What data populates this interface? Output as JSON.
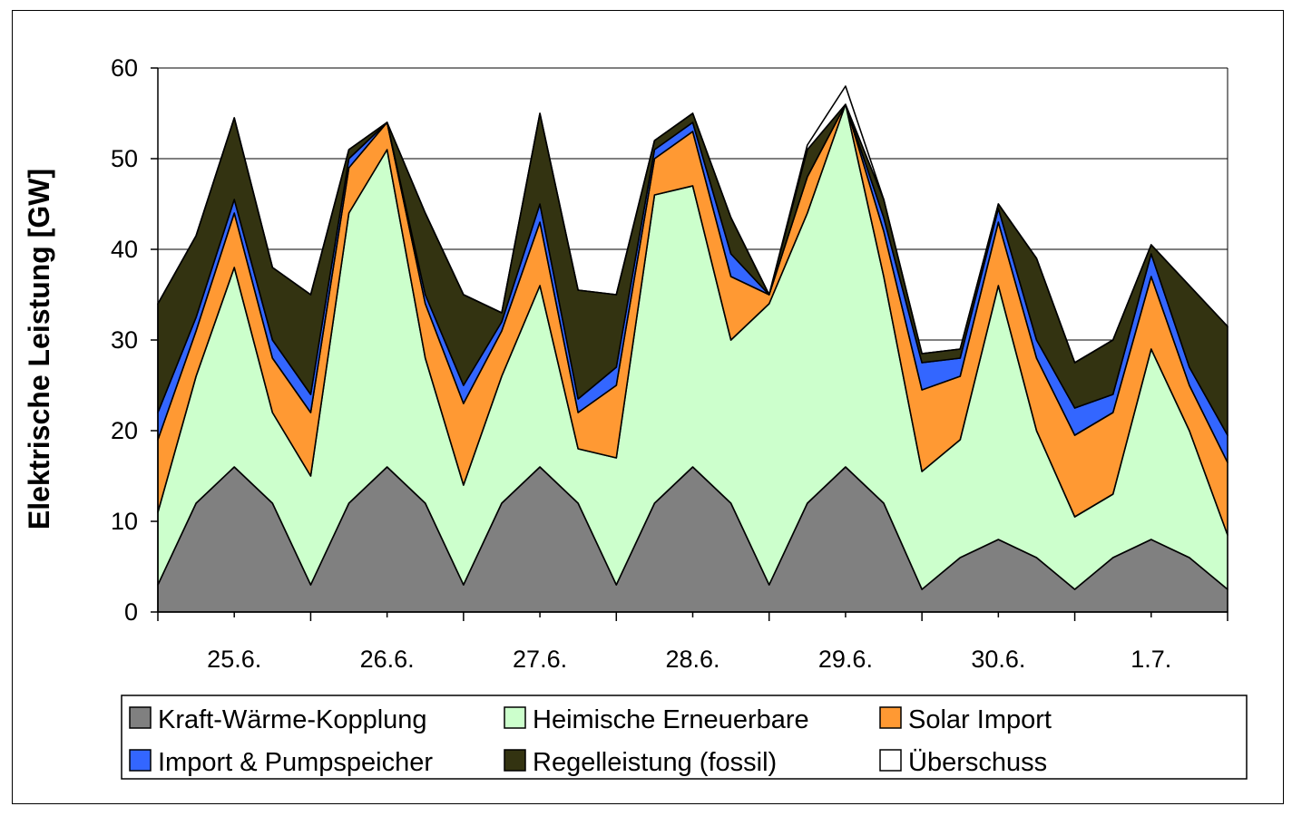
{
  "chart_data": {
    "type": "area",
    "stacked": true,
    "ylabel": "Elektrische Leistung [GW]",
    "xlabel": "",
    "title": "",
    "ylim": [
      0,
      60
    ],
    "yticks": [
      0,
      10,
      20,
      30,
      40,
      50,
      60
    ],
    "xlim": [
      0,
      7
    ],
    "x_unit": "days from 25.6.",
    "xticks": [
      {
        "pos": 0,
        "label": "25.6."
      },
      {
        "pos": 1,
        "label": "26.6."
      },
      {
        "pos": 2,
        "label": "27.6."
      },
      {
        "pos": 3,
        "label": "28.6."
      },
      {
        "pos": 4,
        "label": "29.6."
      },
      {
        "pos": 5,
        "label": "30.6."
      },
      {
        "pos": 6,
        "label": "1.7."
      }
    ],
    "grid": "horizontal",
    "legend_position": "bottom",
    "x": [
      0,
      0.25,
      0.5,
      0.75,
      1,
      1.25,
      1.5,
      1.75,
      2,
      2.25,
      2.5,
      2.75,
      3,
      3.25,
      3.5,
      3.75,
      4,
      4.25,
      4.5,
      4.75,
      5,
      5.25,
      5.5,
      5.75,
      6,
      6.25,
      6.5,
      6.75,
      7
    ],
    "series": [
      {
        "name": "Kraft-Wärme-Kopplung",
        "color": "#808080",
        "values": [
          3,
          12,
          16,
          12,
          3,
          12,
          16,
          12,
          3,
          12,
          16,
          12,
          3,
          12,
          16,
          12,
          3,
          12,
          16,
          12,
          2.5,
          6,
          8,
          6,
          2.5,
          6,
          8,
          6,
          2.5
        ]
      },
      {
        "name": "Heimische Erneuerbare",
        "color": "#ccffcc",
        "values": [
          8,
          14,
          22,
          10,
          12,
          32,
          35,
          16,
          11,
          14,
          20,
          6,
          14,
          34,
          31,
          18,
          31,
          32,
          40,
          25,
          13,
          13,
          28,
          14,
          8,
          7,
          21,
          14,
          6
        ]
      },
      {
        "name": "Solar Import",
        "color": "#ff9933",
        "values": [
          8,
          5,
          6,
          6,
          7,
          5,
          3,
          6,
          9,
          5,
          7,
          4,
          8,
          4,
          6,
          7,
          1,
          4,
          0,
          5,
          9,
          7,
          7,
          8,
          9,
          9,
          8,
          5,
          8
        ]
      },
      {
        "name": "Import & Pumpspeicher",
        "color": "#3366ff",
        "values": [
          3,
          1.5,
          1.5,
          2,
          2,
          1,
          0,
          1,
          2,
          1,
          2,
          1.5,
          2,
          1,
          1,
          2.5,
          0,
          0,
          0,
          1.5,
          3,
          2,
          1.5,
          2,
          3,
          2,
          2.5,
          2,
          3
        ]
      },
      {
        "name": "Regelleistung (fossil)",
        "color": "#333311",
        "values": [
          12,
          9,
          9,
          8,
          11,
          1,
          0,
          9,
          10,
          1,
          10,
          12,
          8,
          1,
          1,
          4,
          0,
          3,
          0,
          2,
          1,
          1,
          0.5,
          9,
          5,
          6,
          1,
          9,
          12
        ]
      },
      {
        "name": "Überschuss",
        "color": "#ffffff",
        "values": [
          0,
          0,
          0,
          0,
          0,
          0,
          0,
          0,
          0,
          0,
          0,
          0,
          0,
          0,
          0,
          0,
          0,
          0.5,
          2,
          0,
          0,
          0,
          0,
          0,
          0,
          0,
          0,
          0,
          0
        ]
      }
    ]
  }
}
